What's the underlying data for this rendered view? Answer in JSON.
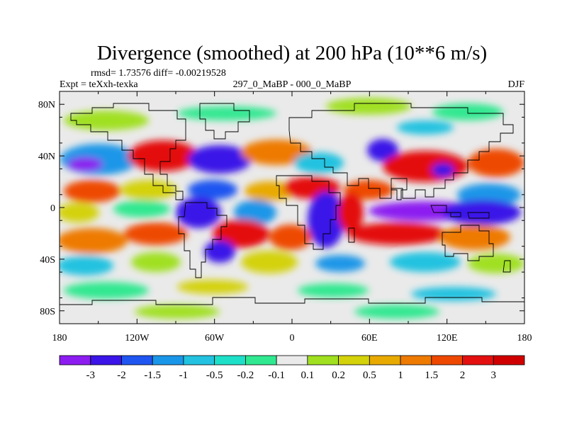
{
  "title": "Divergence (smoothed) at 200 hPa (10**6 m/s)",
  "stats_line": "rmsd= 1.73576 diff= -0.00219528",
  "experiment_label": "Expt = teXxh-texka",
  "comparison_label": "297_0_MaBP - 000_0_MaBP",
  "season_label": "DJF",
  "lat_tick_labels": [
    "80N",
    "40N",
    "0",
    "40S",
    "80S"
  ],
  "lat_tick_values": [
    80,
    40,
    0,
    -40,
    -80
  ],
  "lon_tick_labels": [
    "180",
    "120W",
    "60W",
    "0",
    "60E",
    "120E",
    "180"
  ],
  "lon_tick_values": [
    -180,
    -120,
    -60,
    0,
    60,
    120,
    180
  ],
  "colorbar": {
    "labels": [
      "-3",
      "-2",
      "-1.5",
      "-1",
      "-0.5",
      "-0.2",
      "-0.1",
      "0.1",
      "0.2",
      "0.5",
      "1",
      "1.5",
      "2",
      "3"
    ],
    "colors": [
      "#8c1cf0",
      "#3a14e8",
      "#1f55f0",
      "#1a96e8",
      "#22c2e0",
      "#1ee0c8",
      "#30e890",
      "#eaeaea",
      "#a0e020",
      "#d4d20a",
      "#e8aa00",
      "#ee7a00",
      "#ee4800",
      "#e41010",
      "#d00000"
    ]
  },
  "colors": {
    "background_field": "#eaeaea",
    "coastline": "#000000"
  }
}
